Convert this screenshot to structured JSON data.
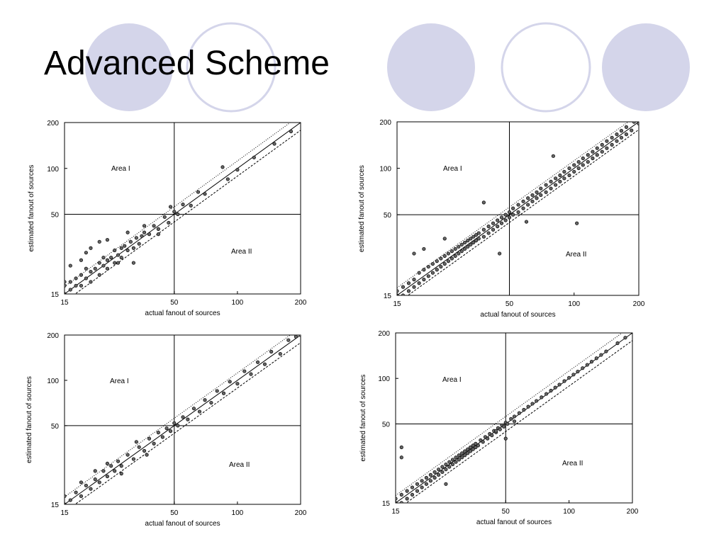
{
  "slide": {
    "title": "Advanced Scheme"
  },
  "chart_data": [
    {
      "type": "scatter",
      "title": "",
      "xlabel": "actual fanout of sources",
      "ylabel": "estimated fanout of sources",
      "scale": "log",
      "xlim": [
        15,
        200
      ],
      "ylim": [
        15,
        200
      ],
      "xticks": [
        "15",
        "50",
        "100",
        "200"
      ],
      "yticks": [
        "15",
        "50",
        "100",
        "200"
      ],
      "area_labels": [
        "Area I",
        "Area II"
      ],
      "divider_lines": {
        "x": 50,
        "y": 50
      },
      "ref_lines": true,
      "points": [
        [
          15,
          15
        ],
        [
          15,
          17
        ],
        [
          15,
          18
        ],
        [
          16,
          16
        ],
        [
          16,
          18
        ],
        [
          17,
          17
        ],
        [
          17,
          19
        ],
        [
          18,
          17
        ],
        [
          18,
          20
        ],
        [
          19,
          19
        ],
        [
          19,
          22
        ],
        [
          20,
          18
        ],
        [
          20,
          21
        ],
        [
          21,
          22
        ],
        [
          22,
          20
        ],
        [
          22,
          24
        ],
        [
          23,
          23
        ],
        [
          23,
          26
        ],
        [
          24,
          22
        ],
        [
          24,
          25
        ],
        [
          25,
          26
        ],
        [
          26,
          24
        ],
        [
          26,
          29
        ],
        [
          27,
          27
        ],
        [
          28,
          30
        ],
        [
          28,
          26
        ],
        [
          29,
          31
        ],
        [
          30,
          29
        ],
        [
          31,
          33
        ],
        [
          32,
          30
        ],
        [
          33,
          35
        ],
        [
          34,
          32
        ],
        [
          35,
          36
        ],
        [
          36,
          38
        ],
        [
          38,
          37
        ],
        [
          40,
          42
        ],
        [
          42,
          40
        ],
        [
          45,
          48
        ],
        [
          47,
          44
        ],
        [
          48,
          56
        ],
        [
          50,
          52
        ],
        [
          52,
          50
        ],
        [
          55,
          58
        ],
        [
          60,
          57
        ],
        [
          65,
          70
        ],
        [
          70,
          68
        ],
        [
          85,
          102
        ],
        [
          90,
          85
        ],
        [
          100,
          98
        ],
        [
          120,
          118
        ],
        [
          150,
          145
        ],
        [
          180,
          175
        ],
        [
          20,
          30
        ],
        [
          22,
          33
        ],
        [
          18,
          25
        ],
        [
          24,
          34
        ],
        [
          30,
          38
        ],
        [
          16,
          23
        ],
        [
          27,
          24
        ],
        [
          36,
          42
        ],
        [
          19,
          28
        ],
        [
          32,
          24
        ],
        [
          42,
          37
        ]
      ]
    },
    {
      "type": "scatter",
      "title": "",
      "xlabel": "actual fanout of sources",
      "ylabel": "estimated fanout of sources",
      "scale": "log",
      "xlim": [
        15,
        200
      ],
      "ylim": [
        15,
        200
      ],
      "xticks": [
        "15",
        "50",
        "100",
        "200"
      ],
      "yticks": [
        "15",
        "50",
        "100",
        "200"
      ],
      "area_labels": [
        "Area I",
        "Area II"
      ],
      "divider_lines": {
        "x": 50,
        "y": 50
      },
      "ref_lines": true,
      "points": [
        [
          15,
          15
        ],
        [
          15,
          16
        ],
        [
          16,
          15
        ],
        [
          16,
          17
        ],
        [
          17,
          16
        ],
        [
          17,
          18
        ],
        [
          18,
          17
        ],
        [
          18,
          19
        ],
        [
          19,
          18
        ],
        [
          19,
          21
        ],
        [
          20,
          19
        ],
        [
          20,
          22
        ],
        [
          21,
          20
        ],
        [
          21,
          23
        ],
        [
          22,
          21
        ],
        [
          22,
          24
        ],
        [
          23,
          22
        ],
        [
          23,
          25
        ],
        [
          24,
          23
        ],
        [
          24,
          26
        ],
        [
          25,
          24
        ],
        [
          25,
          27
        ],
        [
          26,
          25
        ],
        [
          26,
          28
        ],
        [
          27,
          26
        ],
        [
          27,
          29
        ],
        [
          28,
          27
        ],
        [
          28,
          30
        ],
        [
          29,
          28
        ],
        [
          29,
          31
        ],
        [
          30,
          29
        ],
        [
          30,
          32
        ],
        [
          31,
          30
        ],
        [
          31,
          33
        ],
        [
          32,
          31
        ],
        [
          32,
          34
        ],
        [
          33,
          32
        ],
        [
          33,
          35
        ],
        [
          34,
          33
        ],
        [
          34,
          36
        ],
        [
          35,
          34
        ],
        [
          35,
          37
        ],
        [
          36,
          35
        ],
        [
          36,
          38
        ],
        [
          38,
          36
        ],
        [
          38,
          40
        ],
        [
          40,
          38
        ],
        [
          40,
          42
        ],
        [
          42,
          40
        ],
        [
          42,
          44
        ],
        [
          44,
          42
        ],
        [
          44,
          46
        ],
        [
          46,
          44
        ],
        [
          46,
          48
        ],
        [
          48,
          46
        ],
        [
          48,
          50
        ],
        [
          50,
          48
        ],
        [
          50,
          52
        ],
        [
          52,
          50
        ],
        [
          52,
          55
        ],
        [
          55,
          52
        ],
        [
          55,
          58
        ],
        [
          58,
          55
        ],
        [
          58,
          61
        ],
        [
          61,
          58
        ],
        [
          61,
          64
        ],
        [
          64,
          61
        ],
        [
          64,
          67
        ],
        [
          67,
          64
        ],
        [
          67,
          70
        ],
        [
          70,
          67
        ],
        [
          70,
          74
        ],
        [
          74,
          70
        ],
        [
          74,
          78
        ],
        [
          78,
          74
        ],
        [
          78,
          82
        ],
        [
          82,
          78
        ],
        [
          82,
          86
        ],
        [
          86,
          82
        ],
        [
          86,
          90
        ],
        [
          90,
          86
        ],
        [
          90,
          95
        ],
        [
          95,
          90
        ],
        [
          95,
          100
        ],
        [
          100,
          95
        ],
        [
          100,
          105
        ],
        [
          105,
          100
        ],
        [
          105,
          110
        ],
        [
          110,
          105
        ],
        [
          110,
          116
        ],
        [
          116,
          110
        ],
        [
          116,
          122
        ],
        [
          122,
          116
        ],
        [
          122,
          128
        ],
        [
          128,
          122
        ],
        [
          128,
          135
        ],
        [
          135,
          128
        ],
        [
          135,
          142
        ],
        [
          142,
          135
        ],
        [
          142,
          150
        ],
        [
          150,
          142
        ],
        [
          150,
          158
        ],
        [
          158,
          150
        ],
        [
          158,
          166
        ],
        [
          166,
          158
        ],
        [
          166,
          175
        ],
        [
          175,
          166
        ],
        [
          175,
          185
        ],
        [
          185,
          176
        ],
        [
          190,
          200
        ],
        [
          200,
          195
        ],
        [
          103,
          44
        ],
        [
          18,
          28
        ],
        [
          20,
          30
        ],
        [
          45,
          28
        ],
        [
          38,
          60
        ],
        [
          25,
          35
        ],
        [
          60,
          45
        ],
        [
          80,
          120
        ]
      ]
    },
    {
      "type": "scatter",
      "title": "",
      "xlabel": "actual fanout of sources",
      "ylabel": "estimated fanout of sources",
      "scale": "log",
      "xlim": [
        15,
        200
      ],
      "ylim": [
        15,
        200
      ],
      "xticks": [
        "15",
        "50",
        "100",
        "200"
      ],
      "yticks": [
        "15",
        "50",
        "100",
        "200"
      ],
      "area_labels": [
        "Area I",
        "Area II"
      ],
      "divider_lines": {
        "x": 50,
        "y": 50
      },
      "ref_lines": true,
      "points": [
        [
          15,
          15
        ],
        [
          15,
          17
        ],
        [
          16,
          16
        ],
        [
          17,
          18
        ],
        [
          18,
          17
        ],
        [
          19,
          20
        ],
        [
          20,
          19
        ],
        [
          21,
          22
        ],
        [
          22,
          21
        ],
        [
          23,
          25
        ],
        [
          24,
          23
        ],
        [
          25,
          27
        ],
        [
          26,
          25
        ],
        [
          27,
          29
        ],
        [
          28,
          27
        ],
        [
          30,
          32
        ],
        [
          32,
          30
        ],
        [
          34,
          36
        ],
        [
          36,
          34
        ],
        [
          38,
          41
        ],
        [
          40,
          38
        ],
        [
          42,
          45
        ],
        [
          44,
          42
        ],
        [
          46,
          48
        ],
        [
          48,
          46
        ],
        [
          50,
          52
        ],
        [
          52,
          50
        ],
        [
          55,
          57
        ],
        [
          58,
          55
        ],
        [
          62,
          65
        ],
        [
          66,
          62
        ],
        [
          70,
          74
        ],
        [
          75,
          71
        ],
        [
          80,
          85
        ],
        [
          86,
          82
        ],
        [
          92,
          98
        ],
        [
          100,
          95
        ],
        [
          108,
          115
        ],
        [
          116,
          110
        ],
        [
          125,
          132
        ],
        [
          135,
          128
        ],
        [
          145,
          155
        ],
        [
          160,
          150
        ],
        [
          175,
          185
        ],
        [
          190,
          195
        ],
        [
          200,
          200
        ],
        [
          18,
          21
        ],
        [
          21,
          25
        ],
        [
          24,
          28
        ],
        [
          28,
          24
        ],
        [
          33,
          39
        ],
        [
          37,
          32
        ]
      ]
    },
    {
      "type": "scatter",
      "title": "",
      "xlabel": "actual fanout of sources",
      "ylabel": "estimated fanout of sources",
      "scale": "log",
      "xlim": [
        15,
        200
      ],
      "ylim": [
        15,
        200
      ],
      "xticks": [
        "15",
        "50",
        "100",
        "200"
      ],
      "yticks": [
        "15",
        "50",
        "100",
        "200"
      ],
      "area_labels": [
        "Area I",
        "Area II"
      ],
      "divider_lines": {
        "x": 50,
        "y": 50
      },
      "ref_lines": true,
      "points": [
        [
          15,
          15
        ],
        [
          15,
          16
        ],
        [
          16,
          15
        ],
        [
          16,
          17
        ],
        [
          17,
          16
        ],
        [
          17,
          18
        ],
        [
          18,
          17
        ],
        [
          18,
          19
        ],
        [
          19,
          18
        ],
        [
          19,
          20
        ],
        [
          20,
          19
        ],
        [
          20,
          21
        ],
        [
          21,
          20
        ],
        [
          21,
          22
        ],
        [
          22,
          21
        ],
        [
          22,
          23
        ],
        [
          23,
          22
        ],
        [
          23,
          24
        ],
        [
          24,
          23
        ],
        [
          24,
          25
        ],
        [
          25,
          24
        ],
        [
          25,
          26
        ],
        [
          26,
          25
        ],
        [
          26,
          27
        ],
        [
          27,
          26
        ],
        [
          27,
          28
        ],
        [
          28,
          27
        ],
        [
          28,
          29
        ],
        [
          29,
          28
        ],
        [
          29,
          30
        ],
        [
          30,
          29
        ],
        [
          30,
          31
        ],
        [
          31,
          30
        ],
        [
          31,
          32
        ],
        [
          32,
          31
        ],
        [
          32,
          33
        ],
        [
          33,
          32
        ],
        [
          33,
          34
        ],
        [
          34,
          33
        ],
        [
          34,
          35
        ],
        [
          35,
          34
        ],
        [
          35,
          36
        ],
        [
          36,
          35
        ],
        [
          36,
          37
        ],
        [
          37,
          36
        ],
        [
          38,
          39
        ],
        [
          39,
          38
        ],
        [
          40,
          41
        ],
        [
          41,
          40
        ],
        [
          42,
          43
        ],
        [
          43,
          42
        ],
        [
          44,
          45
        ],
        [
          45,
          44
        ],
        [
          46,
          47
        ],
        [
          47,
          46
        ],
        [
          48,
          49
        ],
        [
          49,
          48
        ],
        [
          50,
          51
        ],
        [
          51,
          50
        ],
        [
          53,
          54
        ],
        [
          55,
          56
        ],
        [
          58,
          59
        ],
        [
          61,
          62
        ],
        [
          64,
          65
        ],
        [
          67,
          68
        ],
        [
          70,
          71
        ],
        [
          74,
          75
        ],
        [
          78,
          79
        ],
        [
          82,
          83
        ],
        [
          86,
          87
        ],
        [
          90,
          91
        ],
        [
          95,
          96
        ],
        [
          100,
          101
        ],
        [
          105,
          106
        ],
        [
          110,
          111
        ],
        [
          116,
          117
        ],
        [
          122,
          123
        ],
        [
          128,
          129
        ],
        [
          135,
          136
        ],
        [
          142,
          143
        ],
        [
          150,
          151
        ],
        [
          170,
          171
        ],
        [
          185,
          186
        ],
        [
          16,
          35
        ],
        [
          16,
          30
        ],
        [
          26,
          20
        ],
        [
          45,
          45
        ],
        [
          50,
          40
        ],
        [
          55,
          52
        ]
      ]
    }
  ]
}
